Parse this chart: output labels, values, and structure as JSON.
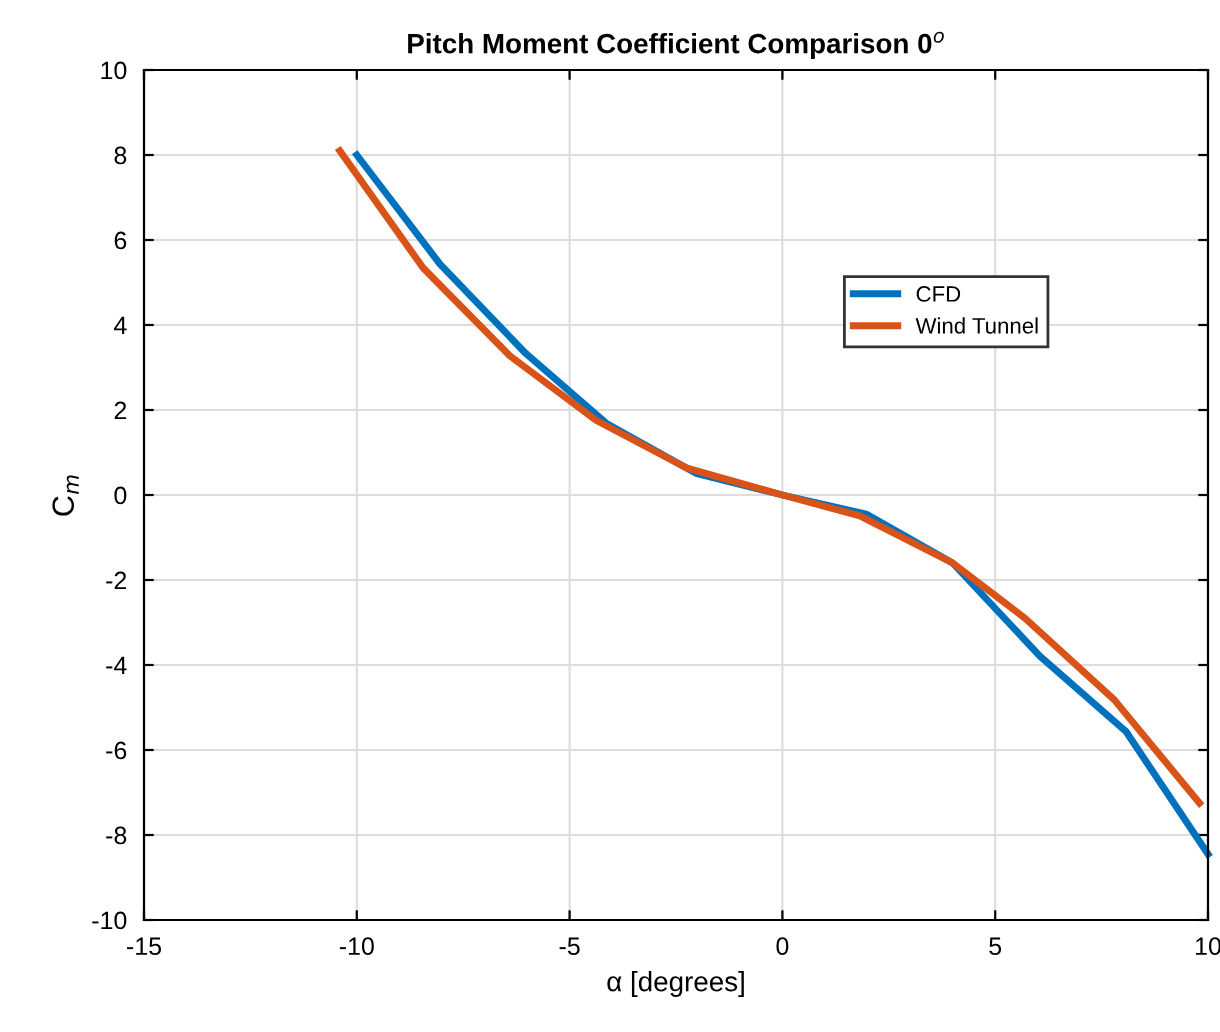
{
  "chart_data": {
    "type": "line",
    "title": "Pitch Moment Coefficient Comparison 0$^{o}$",
    "xlabel": "α [degrees]",
    "ylabel": "C$_{m}$",
    "xlim": [
      -15,
      10
    ],
    "xticks": [
      -15,
      -10,
      -5,
      0,
      5,
      10
    ],
    "ylim": [
      -10,
      10
    ],
    "yticks": [
      -10,
      -8,
      -6,
      -4,
      -2,
      0,
      2,
      4,
      6,
      8,
      10
    ],
    "grid": true,
    "legend": "top right",
    "line_style": "solid",
    "marker": "none",
    "series": [
      {
        "name": "CFD",
        "color": "#0072bd",
        "x": [
          -10,
          -8.05,
          -6.03,
          -4.14,
          -2.03,
          0,
          1.97,
          4,
          6.05,
          8.07,
          10
        ],
        "values": [
          8.0,
          5.44,
          3.33,
          1.69,
          0.51,
          0,
          -0.45,
          -1.6,
          -3.79,
          -5.56,
          -8.45
        ]
      },
      {
        "name": "Wind Tunnel",
        "color": "#d95319",
        "x": [
          -10.4,
          -8.44,
          -6.4,
          -4.38,
          -2.26,
          0,
          1.82,
          4,
          5.7,
          7.8,
          9.8
        ],
        "values": [
          8.1,
          5.34,
          3.27,
          1.76,
          0.64,
          0,
          -0.49,
          -1.6,
          -2.9,
          -4.82,
          -7.25
        ]
      }
    ]
  }
}
